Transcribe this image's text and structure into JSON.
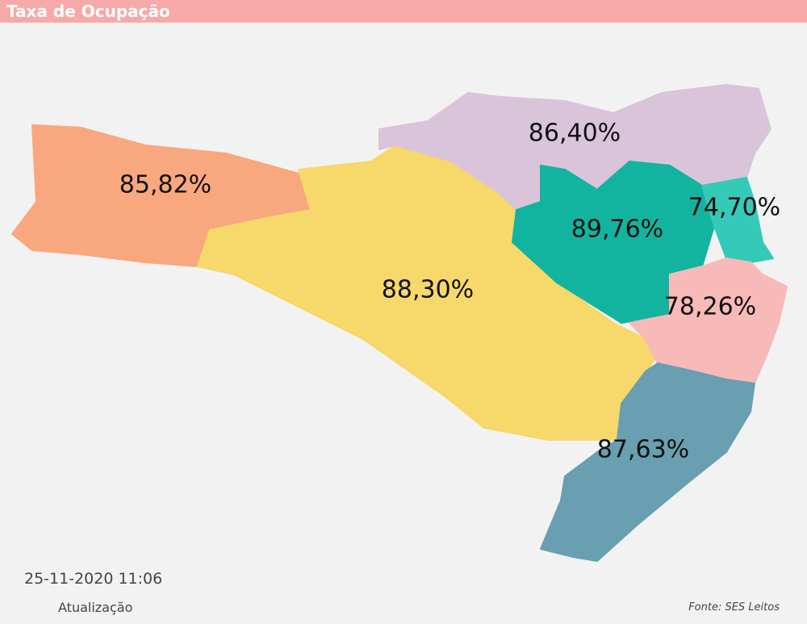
{
  "header": {
    "title": "Taxa de Ocupação"
  },
  "map": {
    "regions": [
      {
        "label": "85,82%",
        "color": "#f9a77e"
      },
      {
        "label": "88,30%",
        "color": "#f6d86b"
      },
      {
        "label": "86,40%",
        "color": "#dac4da"
      },
      {
        "label": "89,76%",
        "color": "#12b49f"
      },
      {
        "label": "74,70%",
        "color": "#35c9b8"
      },
      {
        "label": "78,26%",
        "color": "#f8b9b9"
      },
      {
        "label": "87,63%",
        "color": "#689fb1"
      }
    ]
  },
  "footer": {
    "timestamp": "25-11-2020 11:06",
    "timestamp_caption": "Atualização",
    "source": "Fonte: SES Leitos"
  }
}
